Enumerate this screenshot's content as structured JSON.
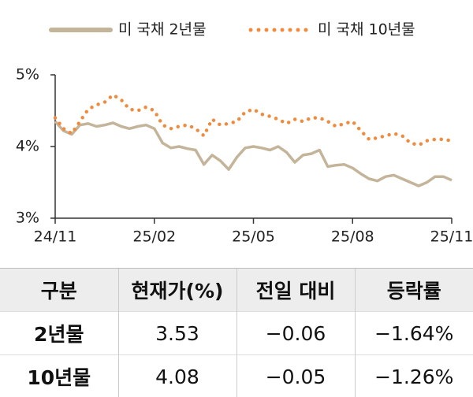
{
  "chart_data": {
    "type": "line",
    "x": [
      0,
      0.25,
      0.5,
      0.75,
      1,
      1.25,
      1.5,
      1.75,
      2,
      2.25,
      2.5,
      2.75,
      3,
      3.25,
      3.5,
      3.75,
      4,
      4.25,
      4.5,
      4.75,
      5,
      5.25,
      5.5,
      5.75,
      6,
      6.25,
      6.5,
      6.75,
      7,
      7.25,
      7.5,
      7.75,
      8,
      8.25,
      8.5,
      8.75,
      9,
      9.25,
      9.5,
      9.75,
      10,
      10.25,
      10.5,
      10.75,
      11,
      11.25,
      11.5,
      11.75,
      12
    ],
    "xlim": [
      0,
      12
    ],
    "xticks": [
      {
        "value": 0,
        "label": "24/11"
      },
      {
        "value": 3,
        "label": "25/02"
      },
      {
        "value": 6,
        "label": "25/05"
      },
      {
        "value": 9,
        "label": "25/08"
      },
      {
        "value": 12,
        "label": "25/11"
      }
    ],
    "ylim": [
      3,
      5
    ],
    "yticks": [
      {
        "value": 3,
        "label": "3%"
      },
      {
        "value": 4,
        "label": "4%"
      },
      {
        "value": 5,
        "label": "5%"
      }
    ],
    "series": [
      {
        "name": "미 국채 2년물",
        "color": "#c4b49a",
        "style": "solid",
        "values": [
          4.35,
          4.22,
          4.17,
          4.3,
          4.32,
          4.28,
          4.3,
          4.33,
          4.28,
          4.25,
          4.28,
          4.3,
          4.25,
          4.05,
          3.98,
          4.0,
          3.97,
          3.95,
          3.75,
          3.88,
          3.8,
          3.68,
          3.85,
          3.98,
          4.0,
          3.98,
          3.95,
          4.0,
          3.92,
          3.78,
          3.88,
          3.9,
          3.95,
          3.72,
          3.74,
          3.75,
          3.7,
          3.62,
          3.55,
          3.52,
          3.58,
          3.6,
          3.55,
          3.5,
          3.45,
          3.5,
          3.58,
          3.58,
          3.53
        ]
      },
      {
        "name": "미 국채 10년물",
        "color": "#f08a3c",
        "style": "dotted",
        "values": [
          4.4,
          4.25,
          4.18,
          4.35,
          4.52,
          4.58,
          4.62,
          4.72,
          4.65,
          4.52,
          4.5,
          4.55,
          4.5,
          4.3,
          4.25,
          4.28,
          4.3,
          4.25,
          4.15,
          4.38,
          4.3,
          4.32,
          4.35,
          4.48,
          4.52,
          4.45,
          4.42,
          4.38,
          4.32,
          4.38,
          4.35,
          4.4,
          4.4,
          4.35,
          4.28,
          4.32,
          4.35,
          4.22,
          4.1,
          4.12,
          4.15,
          4.18,
          4.15,
          4.05,
          4.02,
          4.08,
          4.1,
          4.1,
          4.08
        ]
      }
    ]
  },
  "table": {
    "header": [
      "구분",
      "현재가(%)",
      "전일 대비",
      "등락률"
    ],
    "rows": [
      [
        "2년물",
        "3.53",
        "−0.06",
        "−1.64%"
      ],
      [
        "10년물",
        "4.08",
        "−0.05",
        "−1.26%"
      ]
    ]
  }
}
